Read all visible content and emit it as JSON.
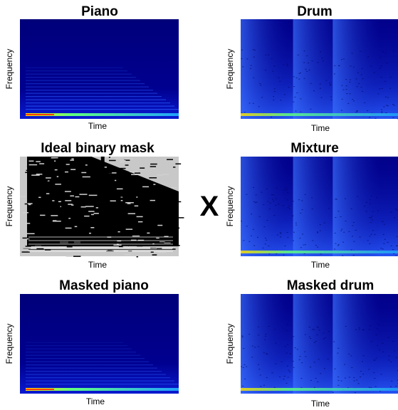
{
  "panels": [
    {
      "title": "Piano",
      "x_label": "Time",
      "y_label": "Frequency"
    },
    {
      "title": "Drum",
      "x_label": "Time",
      "y_label": "Frequency"
    },
    {
      "title": "Ideal binary mask",
      "x_label": "Time",
      "y_label": "Frequency"
    },
    {
      "title": "Mixture",
      "x_label": "Time",
      "y_label": "Frequency"
    },
    {
      "title": "Masked piano",
      "x_label": "Time",
      "y_label": "Frequency"
    },
    {
      "title": "Masked drum",
      "x_label": "Time",
      "y_label": "Frequency"
    }
  ],
  "operator": "X"
}
